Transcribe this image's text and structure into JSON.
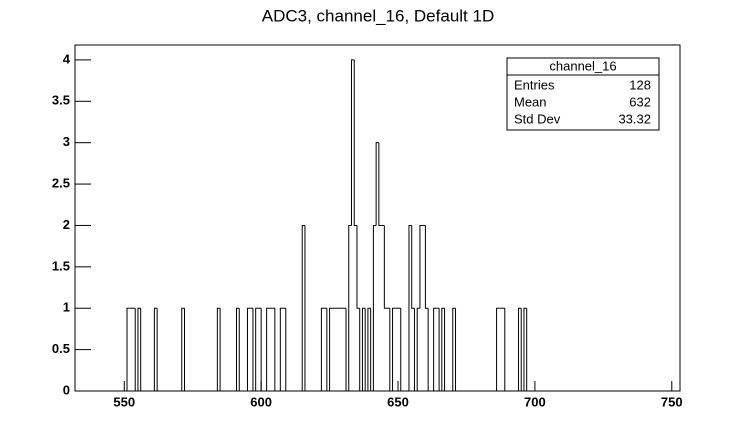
{
  "chart_data": {
    "type": "histogram",
    "title": "ADC3, channel_16, Default 1D",
    "bins": [
      532,
      551,
      552,
      553,
      554,
      555,
      556,
      561,
      562,
      571,
      572,
      584,
      585,
      591,
      592,
      595,
      596,
      597,
      598,
      599,
      600,
      602,
      603,
      604,
      605,
      607,
      608,
      609,
      615,
      616,
      622,
      623,
      624,
      625,
      626,
      627,
      628,
      629,
      630,
      631,
      632,
      633,
      634,
      635,
      636,
      637,
      638,
      639,
      640,
      641,
      642,
      643,
      644,
      645,
      646,
      647,
      648,
      649,
      650,
      651,
      654,
      655,
      656,
      657,
      658,
      659,
      660,
      661,
      663,
      664,
      665,
      666,
      667,
      670,
      671,
      686,
      687,
      688,
      689,
      694,
      695,
      696,
      697,
      753
    ],
    "values": [
      0,
      1,
      1,
      1,
      0,
      1,
      0,
      1,
      0,
      1,
      0,
      1,
      0,
      1,
      0,
      1,
      1,
      0,
      1,
      1,
      0,
      1,
      1,
      1,
      0,
      1,
      1,
      0,
      2,
      0,
      1,
      1,
      0,
      1,
      1,
      1,
      1,
      1,
      1,
      0,
      2,
      4,
      2,
      1,
      0,
      1,
      0,
      1,
      0,
      2,
      3,
      2,
      2,
      1,
      1,
      0,
      1,
      1,
      1,
      0,
      2,
      1,
      0,
      1,
      2,
      2,
      1,
      0,
      1,
      1,
      0,
      1,
      0,
      1,
      0,
      1,
      1,
      1,
      0,
      1,
      0,
      1,
      0
    ],
    "color": "#000000",
    "xlim": [
      532,
      753
    ],
    "xticks": [
      550,
      600,
      650,
      700,
      750
    ],
    "ylim": [
      0,
      4.18
    ],
    "yticks": [
      0,
      0.5,
      1,
      1.5,
      2,
      2.5,
      3,
      3.5,
      4
    ],
    "stats": {
      "title": "channel_16",
      "rows": [
        [
          "Entries",
          128
        ],
        [
          "Mean",
          632
        ],
        [
          "Std Dev",
          33.32
        ]
      ]
    }
  }
}
